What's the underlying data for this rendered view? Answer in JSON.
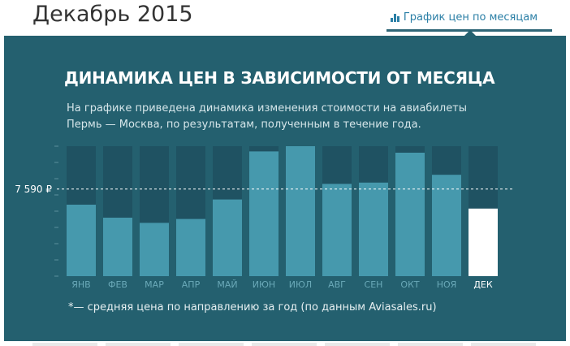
{
  "header": {
    "title": "Декабрь 2015",
    "monthly_link_label": "График цен по месяцам",
    "monthly_link_icon": "bar-chart-icon"
  },
  "panel": {
    "title": "ДИНАМИКА ЦЕН В ЗАВИСИМОСТИ ОТ МЕСЯЦА",
    "description_line1": "На графике приведена динамика изменения стоимости на авиабилеты",
    "description_line2": "Пермь — Москва, по результатам, полученным в течение года.",
    "footnote": "*— средняя цена по направлению за год (по данным Aviasales.ru)"
  },
  "colors": {
    "panel_bg": "#24606f",
    "bar_track": "#1f5262",
    "bar": "#4699ad",
    "bar_highlight": "#ffffff",
    "month_label": "#6aa9b8",
    "month_label_highlight": "#ffffff"
  },
  "chart_data": {
    "type": "bar",
    "categories": [
      "ЯНВ",
      "ФЕВ",
      "МАР",
      "АПР",
      "МАЙ",
      "ИЮН",
      "ИЮЛ",
      "АВГ",
      "СЕН",
      "ОКТ",
      "НОЯ",
      "ДЕК"
    ],
    "values": [
      0.55,
      0.45,
      0.41,
      0.44,
      0.59,
      0.96,
      1.0,
      0.71,
      0.72,
      0.95,
      0.78,
      0.52
    ],
    "value_unit": "fraction of max monthly price",
    "highlight_index": 11,
    "reference_line": {
      "label": "7 590 ₽",
      "value": 0.67
    },
    "ylim": [
      0,
      1
    ],
    "grid": false
  }
}
